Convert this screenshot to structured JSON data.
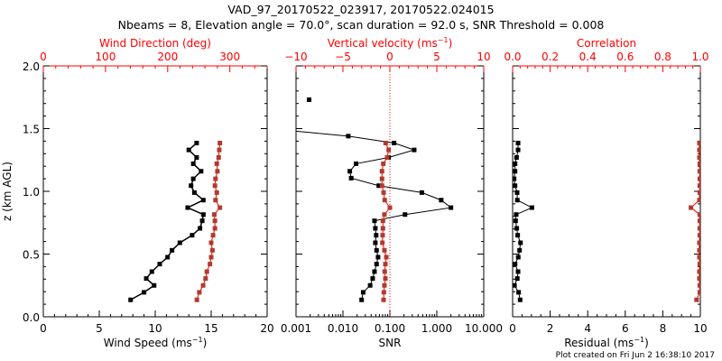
{
  "colors": {
    "axis": "#000000",
    "accent": "#ff0000",
    "secondary_series": "#b03a2e",
    "primary_series": "#000000"
  },
  "title": {
    "line1": "VAD_97_20170522_023917, 20170522.024015",
    "line2": "Nbeams = 8, Elevation angle = 70.0°, scan duration = 92.0 s, SNR Threshold = 0.008"
  },
  "footer": "Plot created on Fri Jun  2 16:38:10 2017",
  "chart_data": [
    {
      "type": "line",
      "name": "wind-panel",
      "ylabel": "z (km AGL)",
      "ylim": [
        0,
        2.0
      ],
      "yticks": [
        "0.0",
        "0.5",
        "1.0",
        "1.5",
        "2.0"
      ],
      "xlabel": "Wind Speed (ms⁻¹)",
      "xlabel_main": "Wind Speed (ms",
      "xlabel_sup": "−1",
      "xlim": [
        0,
        20
      ],
      "xticks": [
        "0",
        "5",
        "10",
        "15",
        "20"
      ],
      "top_xlabel": "Wind Direction (deg)",
      "top_xlim": [
        0,
        360
      ],
      "top_xticks": [
        "0",
        "100",
        "200",
        "300"
      ],
      "z": [
        1.385,
        1.33,
        1.27,
        1.22,
        1.16,
        1.1,
        1.045,
        0.99,
        0.93,
        0.87,
        0.815,
        0.765,
        0.705,
        0.65,
        0.59,
        0.53,
        0.475,
        0.42,
        0.36,
        0.305,
        0.25,
        0.195,
        0.135
      ],
      "series": [
        {
          "name": "Wind Speed",
          "axis": "bottom",
          "values": [
            13.7,
            13.0,
            13.7,
            13.4,
            14.1,
            13.4,
            13.2,
            13.5,
            14.3,
            12.9,
            14.3,
            14.2,
            14.0,
            13.3,
            12.2,
            11.5,
            11.1,
            10.4,
            9.7,
            9.2,
            9.9,
            9.0,
            7.8
          ]
        },
        {
          "name": "Wind Direction",
          "axis": "top",
          "values": [
            284,
            283,
            282,
            279,
            280,
            277,
            276,
            279,
            277,
            284,
            275,
            276,
            276,
            273,
            270,
            272,
            270,
            268,
            263,
            261,
            257,
            251,
            247
          ]
        }
      ]
    },
    {
      "type": "line",
      "name": "snr-panel",
      "xlabel": "SNR",
      "xscale": "log",
      "xlim": [
        0.001,
        10
      ],
      "xticks": [
        "0.001",
        "0.010",
        "0.100",
        "1.000",
        "10.000"
      ],
      "top_xlabel": "Vertical velocity (ms⁻¹)",
      "top_xlabel_main": "Vertical velocity (ms",
      "top_xlabel_sup": "−1",
      "top_xlim": [
        -10,
        10
      ],
      "top_xticks": [
        "−10",
        "−5",
        "0",
        "5",
        "10"
      ],
      "reference_line": {
        "axis": "top",
        "value": 0,
        "style": "dotted"
      },
      "series": [
        {
          "name": "SNR",
          "axis": "bottom",
          "z": [
            1.73,
            1.49,
            1.44,
            1.385,
            1.33,
            1.27,
            1.22,
            1.16,
            1.105,
            1.045,
            0.99,
            0.93,
            0.87,
            0.815,
            0.765,
            0.705,
            0.65,
            0.59,
            0.53,
            0.475,
            0.42,
            0.36,
            0.305,
            0.25,
            0.195,
            0.135
          ],
          "values": [
            0.0019,
            0.0005,
            0.013,
            0.123,
            0.33,
            0.094,
            0.019,
            0.014,
            0.015,
            0.058,
            0.48,
            1.24,
            2.0,
            0.21,
            0.047,
            0.049,
            0.051,
            0.049,
            0.052,
            0.056,
            0.052,
            0.047,
            0.043,
            0.038,
            0.027,
            0.025
          ],
          "isolated_first": true
        },
        {
          "name": "Vertical velocity",
          "axis": "top",
          "z": [
            1.385,
            1.33,
            1.27,
            1.22,
            1.16,
            1.1,
            1.045,
            0.99,
            0.93,
            0.87,
            0.815,
            0.765,
            0.705,
            0.65,
            0.59,
            0.53,
            0.475,
            0.42,
            0.36,
            0.305,
            0.25,
            0.195,
            0.135
          ],
          "values": [
            -0.45,
            -0.13,
            -0.29,
            -0.7,
            -0.84,
            -0.84,
            -0.84,
            -0.67,
            -0.55,
            0.0,
            -0.58,
            -0.74,
            -0.74,
            -0.77,
            -0.8,
            -0.58,
            -0.38,
            -0.48,
            -0.55,
            -0.48,
            -0.58,
            -0.64,
            -0.67
          ]
        }
      ]
    },
    {
      "type": "line",
      "name": "residual-panel",
      "xlabel": "Residual (ms⁻¹)",
      "xlabel_main": "Residual (ms",
      "xlabel_sup": "−1",
      "xlim": [
        0,
        10
      ],
      "xticks": [
        "0",
        "2",
        "4",
        "6",
        "8",
        "10"
      ],
      "top_xlabel": "Correlation",
      "top_xlim": [
        0,
        1.0
      ],
      "top_xticks": [
        "0.0",
        "0.2",
        "0.4",
        "0.6",
        "0.8",
        "1.0"
      ],
      "z": [
        1.385,
        1.33,
        1.27,
        1.22,
        1.16,
        1.1,
        1.045,
        0.99,
        0.93,
        0.87,
        0.815,
        0.765,
        0.705,
        0.65,
        0.59,
        0.53,
        0.475,
        0.42,
        0.36,
        0.305,
        0.25,
        0.195,
        0.135
      ],
      "series": [
        {
          "name": "Residual",
          "axis": "bottom",
          "values": [
            0.29,
            0.29,
            0.21,
            0.13,
            0.13,
            0.08,
            0.13,
            0.24,
            0.25,
            1.03,
            0.19,
            0.16,
            0.22,
            0.27,
            0.42,
            0.37,
            0.3,
            0.13,
            0.29,
            0.25,
            0.1,
            0.32,
            0.4
          ]
        },
        {
          "name": "Correlation",
          "axis": "top",
          "values": [
            0.995,
            0.995,
            0.995,
            0.997,
            0.997,
            0.997,
            0.997,
            0.997,
            0.995,
            0.95,
            0.997,
            0.997,
            0.997,
            0.997,
            0.995,
            0.995,
            0.995,
            0.997,
            0.995,
            0.995,
            0.997,
            0.997,
            0.98
          ]
        }
      ]
    }
  ]
}
